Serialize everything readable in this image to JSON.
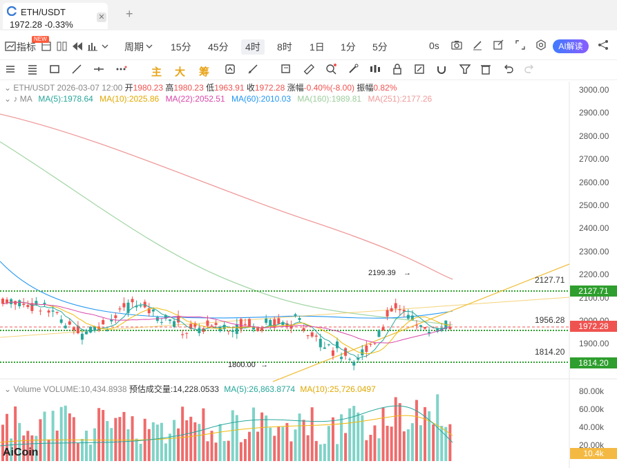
{
  "tab": {
    "title": "ETH/USDT",
    "price_line": "1972.28  -0.33%",
    "close": "✕",
    "add": "+"
  },
  "toolbar1": {
    "indicator": "指标",
    "new_badge": "NEW",
    "period": "周期",
    "intervals": [
      "15分",
      "45分",
      "4时",
      "8时",
      "1日",
      "1分",
      "5分"
    ],
    "active_interval": "4时",
    "zero": "0s",
    "ai": "AI解读"
  },
  "toolbar2": {
    "main": "主",
    "big": "大",
    "chip": "筹"
  },
  "info": {
    "symbol_date": "ETH/USDT  2026-03-07 12:00",
    "open_label": "开",
    "open": "1980.23",
    "high_label": "高",
    "high": "1980.23",
    "low_label": "低",
    "low": "1963.91",
    "close_label": "收",
    "close": "1972.28",
    "change_label": "涨幅",
    "change": "-0.40%(-8.00)",
    "amp_label": "振幅",
    "amp": "0.82%"
  },
  "ma": {
    "label": "MA",
    "ma5": "MA(5):1978.64",
    "ma10": "MA(10):2025.86",
    "ma22": "MA(22):2052.51",
    "ma60": "MA(60):2010.03",
    "ma160": "MA(160):1989.81",
    "ma251": "MA(251):2177.26"
  },
  "volume": {
    "label": "Volume",
    "vol": "VOLUME:10,434.8938",
    "est": "预估成交量:14,228.0533",
    "ma5": "MA(5):26,863.8774",
    "ma10": "MA(10):25,726.0497"
  },
  "price_axis": [
    "3000.00",
    "2900.00",
    "2800.00",
    "2700.00",
    "2600.00",
    "2500.00",
    "2400.00",
    "2300.00",
    "2200.00",
    "2100.00",
    "2000.00",
    "1900.00"
  ],
  "volume_axis": [
    "80.00k",
    "60.00k",
    "40.00k",
    "20.00k"
  ],
  "levels": {
    "upper": "2127.71",
    "mid": "1956.28",
    "lower": "1814.20",
    "current": "1972.28",
    "vol_current": "10.4k"
  },
  "annotations": {
    "high": "2199.39",
    "low": "1800.00"
  },
  "watermark": "AiCoin",
  "colors": {
    "up": "#26a69a",
    "down": "#ef5350",
    "ma5": "#26a69a",
    "ma10": "#f0b90b",
    "ma22": "#d946a8",
    "ma60": "#2196f3",
    "ma160": "#a5d6a7",
    "ma251": "#ef9a9a",
    "level": "#2e9e2e",
    "trend": "#f0c040"
  }
}
